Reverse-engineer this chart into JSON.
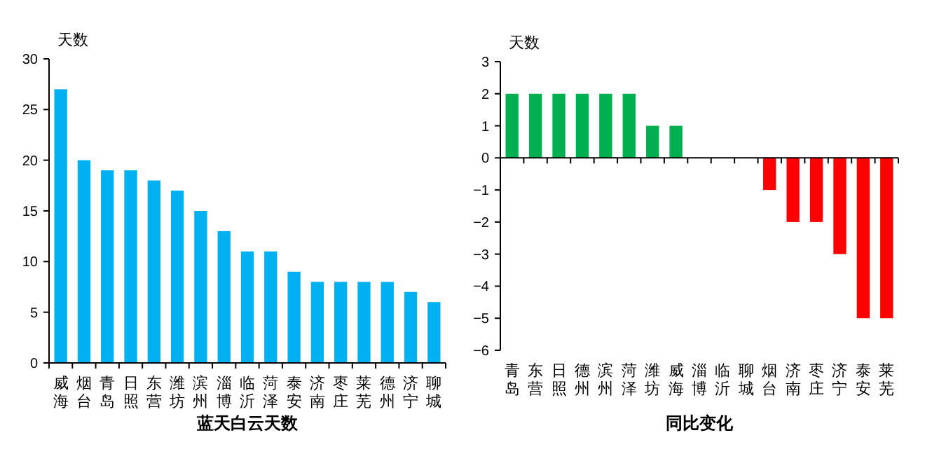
{
  "chart_data": [
    {
      "type": "bar",
      "xlabel": "蓝天白云天数",
      "ylabel": "天数",
      "categories": [
        "威海",
        "烟台",
        "青岛",
        "日照",
        "东营",
        "潍坊",
        "滨州",
        "淄博",
        "临沂",
        "菏泽",
        "泰安",
        "济南",
        "枣庄",
        "莱芜",
        "德州",
        "济宁",
        "聊城"
      ],
      "values": [
        27,
        20,
        19,
        19,
        18,
        17,
        15,
        13,
        11,
        11,
        9,
        8,
        8,
        8,
        8,
        7,
        6
      ],
      "color": "#00b0f0",
      "ylim": [
        0,
        30
      ],
      "yticks": [
        0,
        5,
        10,
        15,
        20,
        25,
        30
      ]
    },
    {
      "type": "bar",
      "xlabel": "同比变化",
      "ylabel": "天数",
      "categories": [
        "青岛",
        "东营",
        "日照",
        "德州",
        "滨州",
        "菏泽",
        "潍坊",
        "威海",
        "淄博",
        "临沂",
        "聊城",
        "烟台",
        "济南",
        "枣庄",
        "济宁",
        "泰安",
        "莱芜"
      ],
      "values": [
        2,
        2,
        2,
        2,
        2,
        2,
        1,
        1,
        0,
        0,
        0,
        -1,
        -2,
        -2,
        -3,
        -5,
        -5
      ],
      "colors": [
        "#00b050",
        "#00b050",
        "#00b050",
        "#00b050",
        "#00b050",
        "#00b050",
        "#00b050",
        "#00b050",
        "#00b050",
        "#00b050",
        "#00b050",
        "#ff0000",
        "#ff0000",
        "#ff0000",
        "#ff0000",
        "#ff0000",
        "#ff0000"
      ],
      "ylim": [
        -6,
        3
      ],
      "yticks": [
        -6,
        -5,
        -4,
        -3,
        -2,
        -1,
        0,
        1,
        2,
        3
      ]
    }
  ]
}
